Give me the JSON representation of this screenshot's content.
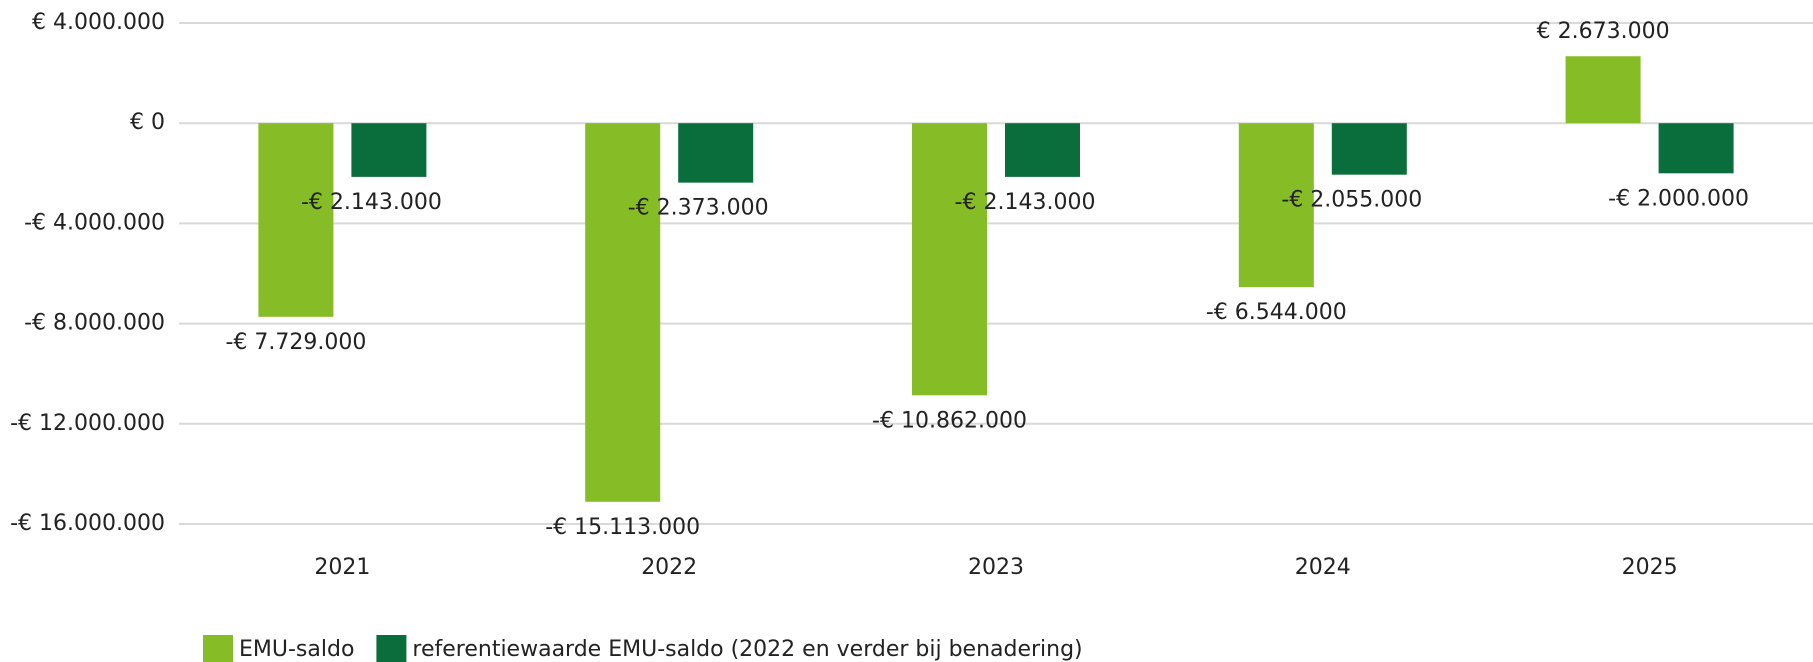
{
  "chart_data": {
    "type": "bar",
    "categories": [
      "2021",
      "2022",
      "2023",
      "2024",
      "2025"
    ],
    "series": [
      {
        "name": "EMU-saldo",
        "color": "#86bc25",
        "values": [
          -7729000,
          -15113000,
          -10862000,
          -6544000,
          2673000
        ],
        "value_labels": [
          "-€ 7.729.000",
          "-€ 15.113.000",
          "-€ 10.862.000",
          "-€ 6.544.000",
          "€ 2.673.000"
        ]
      },
      {
        "name": "referentiewaarde EMU-saldo (2022 en verder bij benadering)",
        "color": "#0a6e3c",
        "values": [
          -2143000,
          -2373000,
          -2143000,
          -2055000,
          -2000000
        ],
        "value_labels": [
          "-€ 2.143.000",
          "-€ 2.373.000",
          "-€ 2.143.000",
          "-€ 2.055.000",
          "-€ 2.000.000"
        ]
      }
    ],
    "ylim": [
      -16000000,
      4000000
    ],
    "yticks": [
      {
        "value": 4000000,
        "label": "€ 4.000.000"
      },
      {
        "value": 0,
        "label": "€ 0"
      },
      {
        "value": -4000000,
        "label": "-€ 4.000.000"
      },
      {
        "value": -8000000,
        "label": "-€ 8.000.000"
      },
      {
        "value": -12000000,
        "label": "-€ 12.000.000"
      },
      {
        "value": -16000000,
        "label": "-€ 16.000.000"
      }
    ],
    "grid": true,
    "legend": "bottom"
  }
}
